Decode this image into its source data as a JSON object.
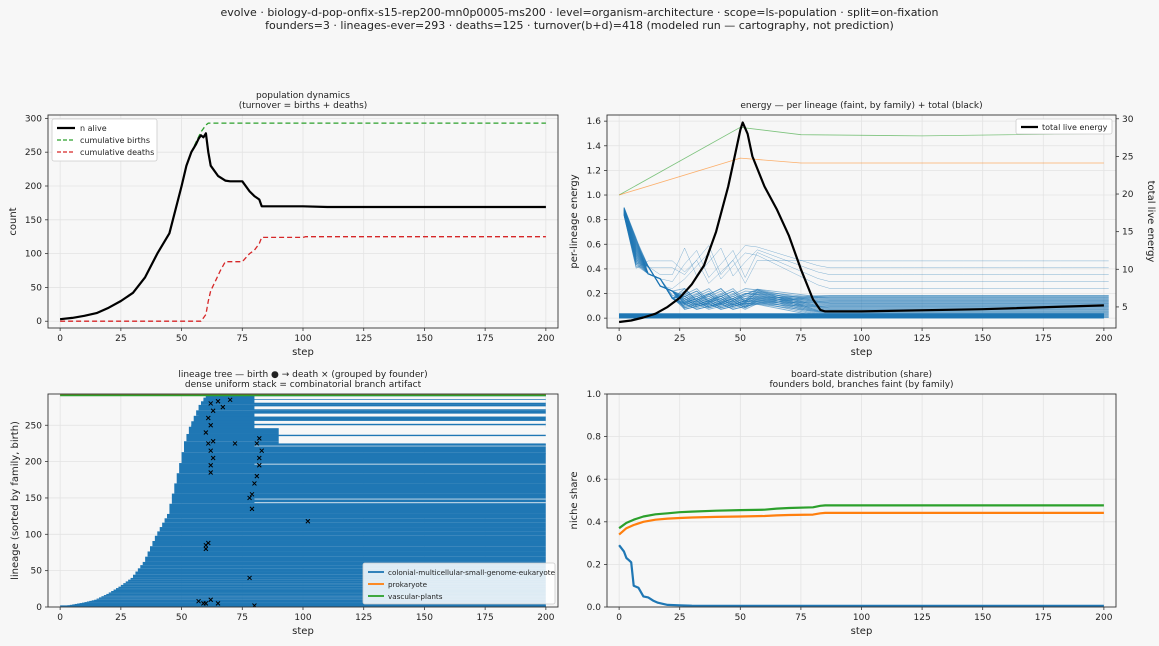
{
  "suptitle": {
    "line1": "evolve · biology-d-pop-onfix-s15-rep200-mn0p0005-ms200 · level=organism-architecture · scope=ls-population · split=on-fixation",
    "line2": "founders=3 · lineages-ever=293 · deaths=125 · turnover(b+d)=418   (modeled run — cartography, not prediction)"
  },
  "colors": {
    "blue": "#1f77b4",
    "orange": "#ff7f0e",
    "green": "#2ca02c",
    "red": "#d62728",
    "black": "#000000"
  },
  "chart_data": [
    {
      "id": "population",
      "type": "line",
      "title": "population dynamics",
      "subtitle": "(turnover = births + deaths)",
      "xlabel": "step",
      "ylabel": "count",
      "xlim": [
        -5,
        205
      ],
      "ylim": [
        -10,
        305
      ],
      "xticks": [
        0,
        25,
        50,
        75,
        100,
        125,
        150,
        175,
        200
      ],
      "yticks": [
        0,
        50,
        100,
        150,
        200,
        250,
        300
      ],
      "grid": true,
      "legend": "top-left",
      "series": [
        {
          "name": "n alive",
          "color": "black",
          "style": "solid",
          "width": 2.2,
          "x": [
            0,
            5,
            10,
            15,
            20,
            25,
            30,
            35,
            40,
            45,
            50,
            52,
            54,
            56,
            57,
            58,
            59,
            60,
            61,
            62,
            65,
            68,
            70,
            75,
            78,
            80,
            82,
            83,
            90,
            100,
            110,
            150,
            200
          ],
          "y": [
            3,
            5,
            8,
            12,
            20,
            30,
            42,
            65,
            100,
            130,
            200,
            230,
            250,
            262,
            270,
            275,
            272,
            278,
            250,
            230,
            215,
            208,
            207,
            207,
            192,
            185,
            180,
            170,
            170,
            170,
            169,
            169,
            169
          ]
        },
        {
          "name": "cumulative births",
          "color": "green",
          "style": "dashed",
          "width": 1.3,
          "x": [
            0,
            5,
            10,
            15,
            20,
            25,
            30,
            35,
            40,
            45,
            50,
            52,
            54,
            56,
            58,
            60,
            61,
            200
          ],
          "y": [
            3,
            5,
            8,
            12,
            20,
            30,
            42,
            65,
            100,
            130,
            200,
            230,
            250,
            265,
            280,
            290,
            293,
            293
          ]
        },
        {
          "name": "cumulative deaths",
          "color": "red",
          "style": "dashed",
          "width": 1.3,
          "x": [
            0,
            58,
            60,
            61,
            62,
            64,
            66,
            68,
            75,
            78,
            80,
            82,
            83,
            90,
            100,
            101,
            200
          ],
          "y": [
            0,
            0,
            10,
            30,
            45,
            60,
            75,
            88,
            88,
            100,
            105,
            115,
            124,
            124,
            124,
            125,
            125
          ]
        }
      ]
    },
    {
      "id": "energy",
      "type": "line",
      "title": "energy — per lineage (faint, by family) + total (black)",
      "xlabel": "step",
      "ylabel": "per-lineage energy",
      "ylabel_right": "total live energy",
      "xlim": [
        -5,
        205
      ],
      "ylim": [
        -0.08,
        1.65
      ],
      "ylim_right": [
        2.2,
        30.5
      ],
      "xticks": [
        0,
        25,
        50,
        75,
        100,
        125,
        150,
        175,
        200
      ],
      "yticks": [
        0.0,
        0.2,
        0.4,
        0.6,
        0.8,
        1.0,
        1.2,
        1.4,
        1.6
      ],
      "yticks_right": [
        5,
        10,
        15,
        20,
        25,
        30
      ],
      "grid": true,
      "legend": "top-right",
      "series": [
        {
          "name": "total live energy",
          "axis": "right",
          "color": "black",
          "width": 2.2,
          "x": [
            0,
            5,
            10,
            15,
            20,
            25,
            30,
            35,
            40,
            45,
            48,
            50,
            51,
            53,
            55,
            60,
            65,
            70,
            75,
            80,
            83,
            85,
            100,
            150,
            200
          ],
          "y": [
            3.0,
            3.2,
            3.6,
            4.1,
            5.0,
            6.2,
            8.0,
            10.5,
            15.0,
            21.0,
            25.5,
            28.5,
            29.5,
            28.0,
            25.0,
            21.0,
            18.0,
            14.5,
            10.0,
            6.0,
            4.6,
            4.4,
            4.4,
            4.7,
            5.2
          ]
        },
        {
          "family": "green",
          "axis": "left",
          "faint": true,
          "x": [
            0,
            50,
            75,
            125,
            200
          ],
          "y": [
            1.0,
            1.55,
            1.49,
            1.48,
            1.5
          ]
        },
        {
          "family": "orange",
          "axis": "left",
          "faint": true,
          "x": [
            0,
            50,
            75,
            125,
            200
          ],
          "y": [
            1.0,
            1.3,
            1.26,
            1.26,
            1.26
          ]
        }
      ]
    },
    {
      "id": "lineage-tree",
      "type": "lineage-tree",
      "title": "lineage tree — birth ● → death ×  (grouped by founder)",
      "subtitle": "dense uniform stack = combinatorial branch artifact",
      "xlabel": "step",
      "ylabel": "lineage (sorted by family, birth)",
      "xlim": [
        -5,
        205
      ],
      "ylim": [
        0,
        293
      ],
      "xticks": [
        0,
        25,
        50,
        75,
        100,
        125,
        150,
        175,
        200
      ],
      "yticks": [
        0,
        50,
        100,
        150,
        200,
        250
      ],
      "grid": true,
      "legend": "bottom-right",
      "legend_entries": [
        {
          "name": "colonial-multicellular-small-genome-eukaryote",
          "color": "blue"
        },
        {
          "name": "prokaryote",
          "color": "orange"
        },
        {
          "name": "vascular-plants",
          "color": "green"
        }
      ],
      "births_x": [
        0,
        5,
        10,
        15,
        20,
        25,
        30,
        35,
        40,
        45,
        50,
        52,
        54,
        56,
        58,
        60,
        61
      ],
      "births_y": [
        0,
        3,
        6,
        10,
        18,
        28,
        40,
        62,
        98,
        128,
        198,
        228,
        248,
        263,
        278,
        288,
        291
      ],
      "death_markers": [
        [
          57,
          8
        ],
        [
          59,
          5
        ],
        [
          60,
          5
        ],
        [
          62,
          10
        ],
        [
          65,
          5
        ],
        [
          80,
          2
        ],
        [
          78,
          40
        ],
        [
          102,
          118
        ],
        [
          79,
          135
        ],
        [
          60,
          80
        ],
        [
          60,
          85
        ],
        [
          61,
          88
        ],
        [
          62,
          185
        ],
        [
          62,
          195
        ],
        [
          63,
          205
        ],
        [
          62,
          215
        ],
        [
          61,
          225
        ],
        [
          63,
          228
        ],
        [
          60,
          240
        ],
        [
          62,
          250
        ],
        [
          61,
          260
        ],
        [
          63,
          270
        ],
        [
          62,
          280
        ],
        [
          65,
          283
        ],
        [
          67,
          275
        ],
        [
          70,
          285
        ],
        [
          72,
          225
        ],
        [
          78,
          150
        ],
        [
          79,
          155
        ],
        [
          80,
          170
        ],
        [
          81,
          180
        ],
        [
          82,
          195
        ],
        [
          82,
          205
        ],
        [
          83,
          215
        ],
        [
          81,
          225
        ],
        [
          82,
          232
        ]
      ],
      "dead_lines": [
        [
          54,
          246,
          80
        ],
        [
          55,
          252,
          80
        ],
        [
          57,
          262,
          80
        ],
        [
          58,
          272,
          80
        ],
        [
          59,
          281,
          80
        ],
        [
          60,
          286,
          80
        ]
      ],
      "gaps_y": [
        148,
        143,
        196,
        221
      ],
      "long_lines_y": [
        236,
        223,
        211
      ]
    },
    {
      "id": "niche-share",
      "type": "line",
      "title": "board-state distribution (share)",
      "subtitle": "founders bold, branches faint (by family)",
      "xlabel": "step",
      "ylabel": "niche share",
      "xlim": [
        -5,
        205
      ],
      "ylim": [
        0.0,
        1.0
      ],
      "xticks": [
        0,
        25,
        50,
        75,
        100,
        125,
        150,
        175,
        200
      ],
      "yticks": [
        0.0,
        0.2,
        0.4,
        0.6,
        0.8,
        1.0
      ],
      "grid": true,
      "series": [
        {
          "family": "green",
          "color": "green",
          "width": 2.2,
          "x": [
            0,
            3,
            6,
            10,
            15,
            20,
            25,
            30,
            40,
            50,
            60,
            65,
            70,
            80,
            83,
            85,
            100,
            150,
            200
          ],
          "y": [
            0.37,
            0.395,
            0.41,
            0.425,
            0.435,
            0.44,
            0.445,
            0.448,
            0.452,
            0.455,
            0.457,
            0.462,
            0.465,
            0.468,
            0.475,
            0.477,
            0.477,
            0.477,
            0.477
          ]
        },
        {
          "family": "orange",
          "color": "orange",
          "width": 2.2,
          "x": [
            0,
            3,
            6,
            10,
            15,
            20,
            25,
            30,
            40,
            50,
            60,
            65,
            70,
            80,
            83,
            85,
            100,
            150,
            200
          ],
          "y": [
            0.34,
            0.37,
            0.385,
            0.4,
            0.41,
            0.415,
            0.418,
            0.42,
            0.423,
            0.425,
            0.427,
            0.43,
            0.432,
            0.434,
            0.44,
            0.442,
            0.442,
            0.442,
            0.442
          ]
        },
        {
          "family": "blue",
          "color": "blue",
          "width": 2.2,
          "x": [
            0,
            2,
            3,
            4,
            5,
            6,
            8,
            10,
            12,
            14,
            16,
            18,
            20,
            25,
            30,
            50,
            100,
            200
          ],
          "y": [
            0.29,
            0.26,
            0.23,
            0.22,
            0.21,
            0.1,
            0.09,
            0.05,
            0.045,
            0.03,
            0.02,
            0.015,
            0.01,
            0.008,
            0.006,
            0.005,
            0.005,
            0.005
          ]
        }
      ]
    }
  ]
}
